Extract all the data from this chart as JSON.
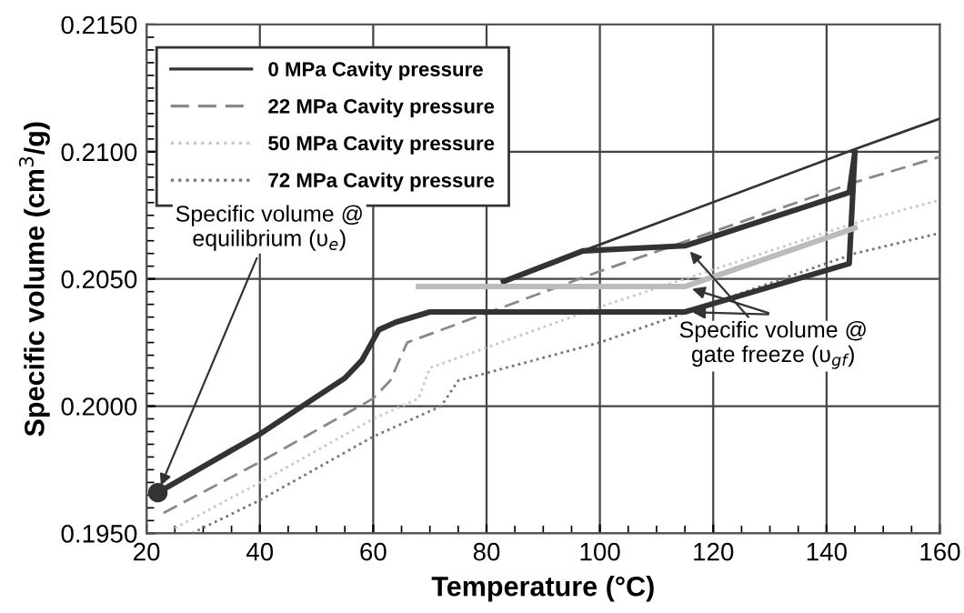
{
  "chart_data": {
    "type": "line",
    "xlabel": "Temperature (°C)",
    "ylabel": "Specific volume (cm$^{3}$/g)",
    "xlim": [
      20,
      160
    ],
    "xticks": [
      20,
      40,
      60,
      80,
      100,
      120,
      140,
      160
    ],
    "ylim": [
      0.195,
      0.215
    ],
    "yticks": [
      {
        "value": 0.195,
        "label": "0.1950"
      },
      {
        "value": 0.2,
        "label": "0.2000"
      },
      {
        "value": 0.205,
        "label": "0.2050"
      },
      {
        "value": 0.21,
        "label": "0.2100"
      },
      {
        "value": 0.215,
        "label": "0.2150"
      }
    ],
    "grid": true,
    "legend": "top left",
    "marker": "none",
    "series": [
      {
        "name": "0 MPa Cavity pressure",
        "color": "#333333",
        "line_style": "solid",
        "x": [
          83,
          97,
          145,
          160
        ],
        "values": [
          0.2049,
          0.2061,
          0.2101,
          0.2113
        ]
      },
      {
        "name": "22 MPa Cavity pressure",
        "color": "#888888",
        "line_style": "dashed",
        "x": [
          23,
          40,
          60,
          63,
          66,
          100,
          145,
          160
        ],
        "values": [
          0.1958,
          0.1978,
          0.2003,
          0.201,
          0.2025,
          0.2053,
          0.2088,
          0.2098
        ]
      },
      {
        "name": "50 MPa Cavity pressure",
        "color": "#c8c8c8",
        "line_style": "dotted",
        "x": [
          25,
          40,
          60,
          68,
          70,
          100,
          145,
          160
        ],
        "values": [
          0.1952,
          0.197,
          0.1995,
          0.2003,
          0.2015,
          0.2039,
          0.2072,
          0.2081
        ]
      },
      {
        "name": "72 MPa Cavity pressure",
        "color": "#777777",
        "line_style": "dotted",
        "x": [
          28,
          40,
          60,
          72,
          75,
          100,
          145,
          160
        ],
        "values": [
          0.195,
          0.1963,
          0.1988,
          0.2,
          0.201,
          0.2025,
          0.206,
          0.2068
        ]
      },
      {
        "type": "scatter",
        "color": "#333333",
        "marker": "circle",
        "x": [
          22
        ],
        "values": [
          0.1966
        ]
      },
      {
        "color": "#333333",
        "line_style": "solid",
        "x": [
          22,
          40,
          55,
          58,
          61,
          64,
          70,
          115,
          144,
          145,
          144,
          115,
          97,
          83
        ],
        "values": [
          0.1966,
          0.1989,
          0.2011,
          0.2018,
          0.203,
          0.2033,
          0.2037,
          0.2037,
          0.2056,
          0.21,
          0.2084,
          0.2063,
          0.2061,
          0.2049
        ]
      },
      {
        "color": "#bbbbbb",
        "line_style": "solid",
        "x": [
          68,
          115,
          145
        ],
        "values": [
          0.2047,
          0.2047,
          0.207
        ]
      }
    ],
    "annotations": [
      {
        "text": "Specific volume @\nequilibrium (υ$_{e}$)",
        "x": 22,
        "y": 0.1966
      },
      {
        "text": "Specific volume @\ngate freeze (υ$_{gf}$)",
        "x": 115,
        "y": 0.2063
      }
    ]
  }
}
